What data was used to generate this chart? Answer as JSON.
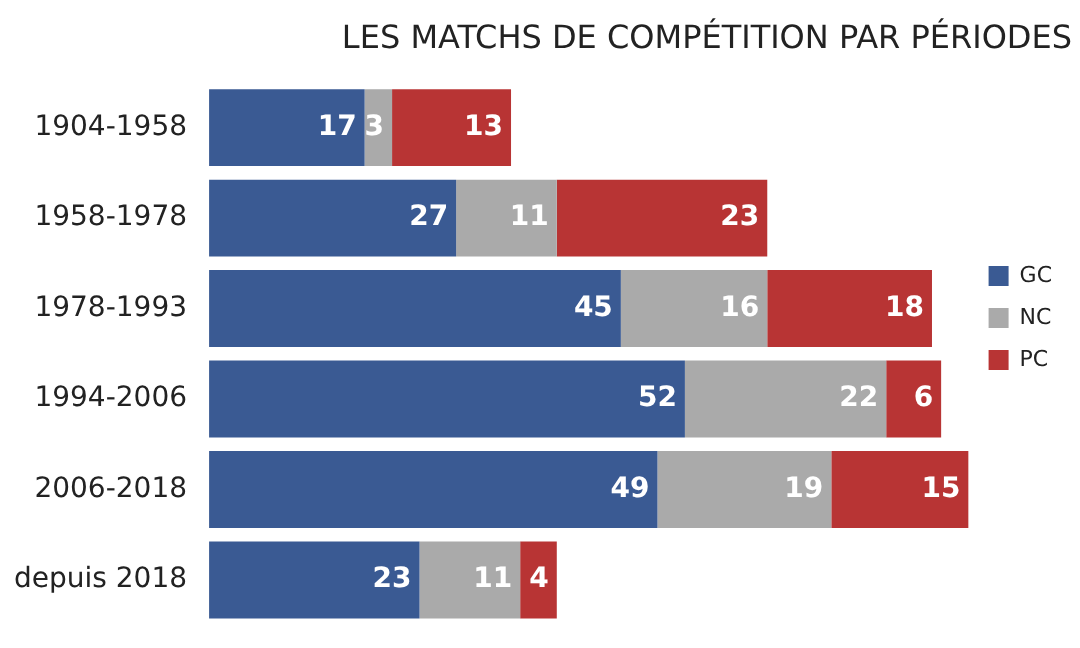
{
  "chart_data": {
    "type": "bar",
    "orientation": "horizontal",
    "stacked": true,
    "title": "LES MATCHS DE COMPÉTITION PAR PÉRIODES",
    "categories": [
      "1904-1958",
      "1958-1978",
      "1978-1993",
      "1994-2006",
      "2006-2018",
      "depuis 2018"
    ],
    "series": [
      {
        "name": "GC",
        "color": "#3a5a93",
        "values": [
          17,
          27,
          45,
          52,
          49,
          23
        ]
      },
      {
        "name": "NC",
        "color": "#aaaaaa",
        "values": [
          3,
          11,
          16,
          22,
          19,
          11
        ]
      },
      {
        "name": "PC",
        "color": "#b83434",
        "values": [
          13,
          23,
          18,
          6,
          15,
          4
        ]
      }
    ],
    "data_labels": true,
    "legend": "top right"
  }
}
